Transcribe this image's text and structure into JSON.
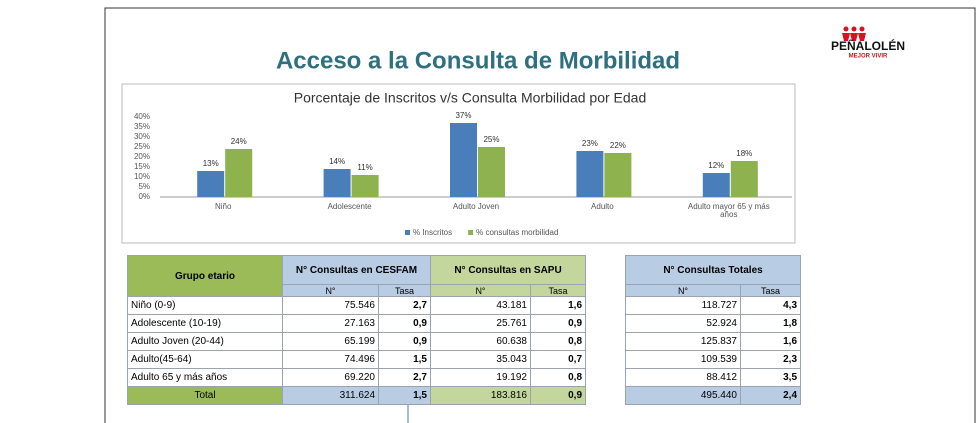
{
  "title": "Acceso a la Consulta de Morbilidad",
  "logo": {
    "name": "PEÑALOLÉN",
    "tagline": "MEJOR VIVIR"
  },
  "chart_data": {
    "type": "bar",
    "title": "Porcentaje de Inscritos v/s Consulta Morbilidad por Edad",
    "categories": [
      "Niño",
      "Adolescente",
      "Adulto Joven",
      "Adulto",
      "Adulto mayor 65 y más años"
    ],
    "series": [
      {
        "name": "% Inscritos",
        "color": "#4a7ebb",
        "values": [
          13,
          14,
          37,
          23,
          12
        ],
        "value_labels": [
          "13%",
          "14%",
          "37%",
          "23%",
          "12%"
        ]
      },
      {
        "name": "% consultas morbilidad",
        "color": "#8db24e",
        "values": [
          24,
          11,
          25,
          22,
          18
        ],
        "value_labels": [
          "24%",
          "11%",
          "25%",
          "22%",
          "18%"
        ]
      }
    ],
    "ylim": [
      0,
      40
    ],
    "yticks": [
      {
        "value": 0,
        "label": "0%"
      },
      {
        "value": 5,
        "label": "5%"
      },
      {
        "value": 10,
        "label": "10%"
      },
      {
        "value": 15,
        "label": "15%"
      },
      {
        "value": 20,
        "label": "20%"
      },
      {
        "value": 25,
        "label": "25%"
      },
      {
        "value": 30,
        "label": "30%"
      },
      {
        "value": 35,
        "label": "35%"
      },
      {
        "value": 40,
        "label": "40%"
      }
    ],
    "grid": false,
    "legend": "bottom"
  },
  "table": {
    "group_header": "Grupo etario",
    "cesfam_header": "N° Consultas en CESFAM",
    "sapu_header": "N° Consultas en SAPU",
    "total_header": "N° Consultas Totales",
    "sub_headers": [
      "N°",
      "Tasa",
      "N°",
      "Tasa",
      "N°",
      "Tasa"
    ],
    "rows": [
      [
        "Niño (0-9)",
        "75.546",
        "2,7",
        "43.181",
        "1,6",
        "118.727",
        "4,3"
      ],
      [
        "Adolescente (10-19)",
        "27.163",
        "0,9",
        "25.761",
        "0,9",
        "52.924",
        "1,8"
      ],
      [
        "Adulto Joven (20-44)",
        "65.199",
        "0,9",
        "60.638",
        "0,8",
        "125.837",
        "1,6"
      ],
      [
        "Adulto(45-64)",
        "74.496",
        "1,5",
        "35.043",
        "0,7",
        "109.539",
        "2,3"
      ],
      [
        "Adulto 65 y más años",
        "69.220",
        "2,7",
        "19.192",
        "0,8",
        "88.412",
        "3,5"
      ]
    ],
    "total_row": [
      "Total",
      "311.624",
      "1,5",
      "183.816",
      "0,9",
      "495.440",
      "2,4"
    ]
  }
}
